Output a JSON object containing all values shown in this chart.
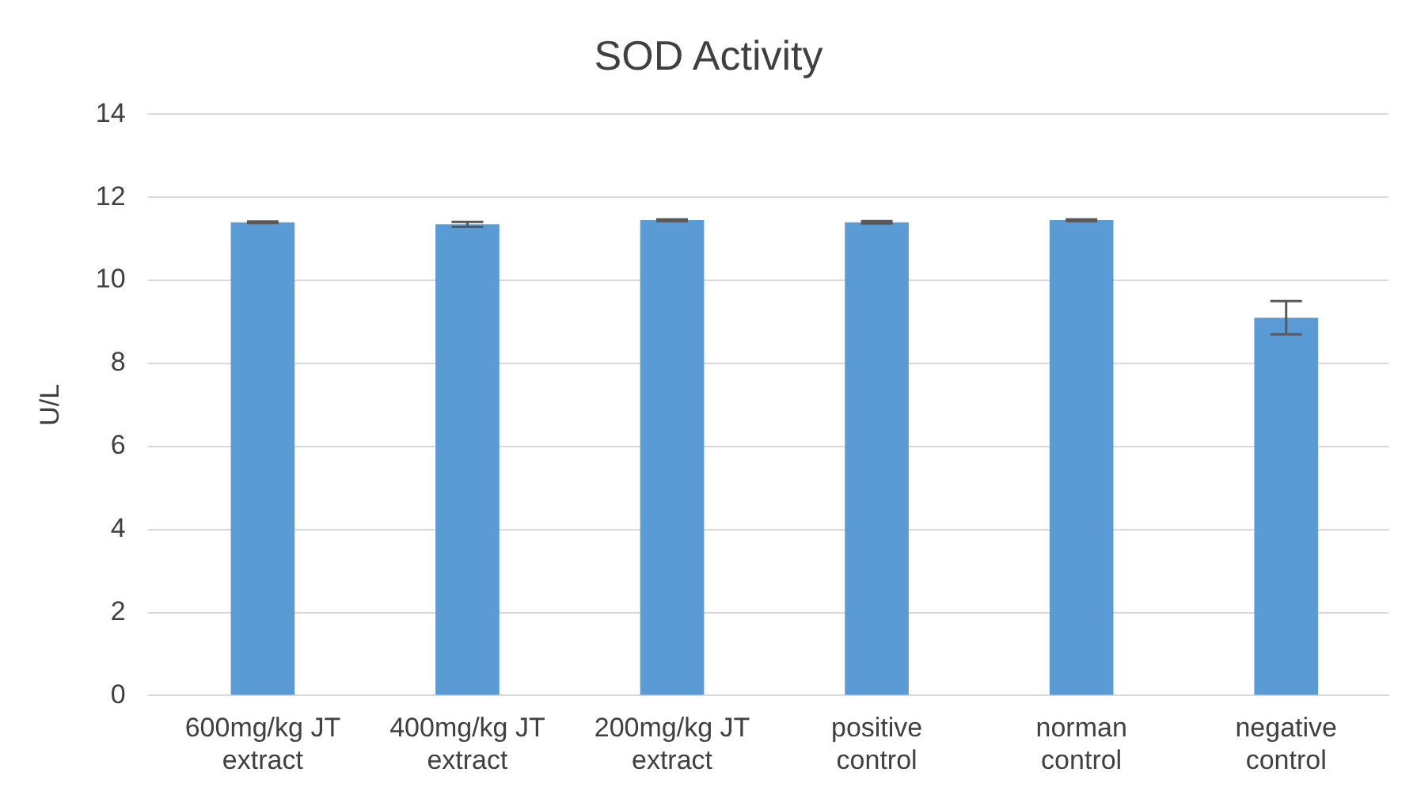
{
  "chart_data": {
    "type": "bar",
    "title": "SOD Activity",
    "ylabel": "U/L",
    "categories": [
      "600mg/kg JT extract",
      "400mg/kg JT extract",
      "200mg/kg JT extract",
      "positive control",
      "norman control",
      "negative control"
    ],
    "values": [
      11.4,
      11.35,
      11.45,
      11.4,
      11.45,
      9.1
    ],
    "errors": [
      0.02,
      0.06,
      0.02,
      0.03,
      0.02,
      0.4
    ],
    "color": "#5b9bd5",
    "ylim": [
      0,
      14
    ],
    "yticks": [
      0,
      2,
      4,
      6,
      8,
      10,
      12,
      14
    ],
    "grid": "y",
    "legend": false
  }
}
